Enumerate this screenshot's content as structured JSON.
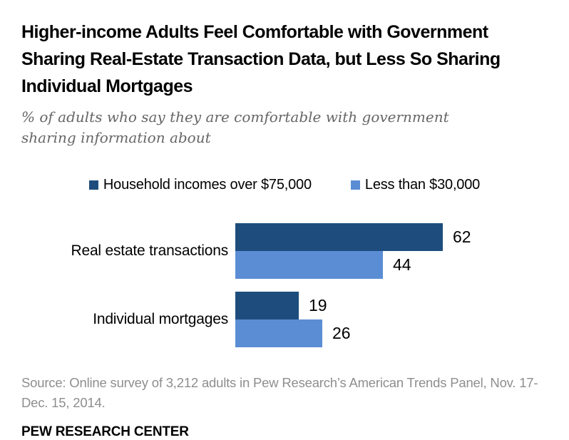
{
  "header": {
    "title": "Higher-income Adults Feel Comfortable with Government Sharing Real-Estate Transaction Data, but Less So Sharing Individual Mortgages",
    "subtitle": "% of adults who say they are comfortable with government sharing information about"
  },
  "chart_data": {
    "type": "bar",
    "orientation": "horizontal",
    "title": "Higher-income Adults Feel Comfortable with Government Sharing Real-Estate Transaction Data, but Less So Sharing Individual Mortgages",
    "subtitle": "% of adults who say they are comfortable with government sharing information about",
    "categories": [
      "Real estate transactions",
      "Individual mortgages"
    ],
    "series": [
      {
        "name": "Household incomes over $75,000",
        "color": "#1e4d7d",
        "values": [
          62,
          19
        ]
      },
      {
        "name": "Less than $30,000",
        "color": "#5b8dd4",
        "values": [
          44,
          26
        ]
      }
    ],
    "value_axis_max": 70,
    "grid": false,
    "axis_ticks_shown": false,
    "legend_position": "top",
    "data_labels": true
  },
  "footer": {
    "source": "Source: Online survey of 3,212 adults in Pew Research’s American Trends Panel, Nov. 17-Dec. 15, 2014.",
    "brand": "PEW RESEARCH CENTER"
  }
}
